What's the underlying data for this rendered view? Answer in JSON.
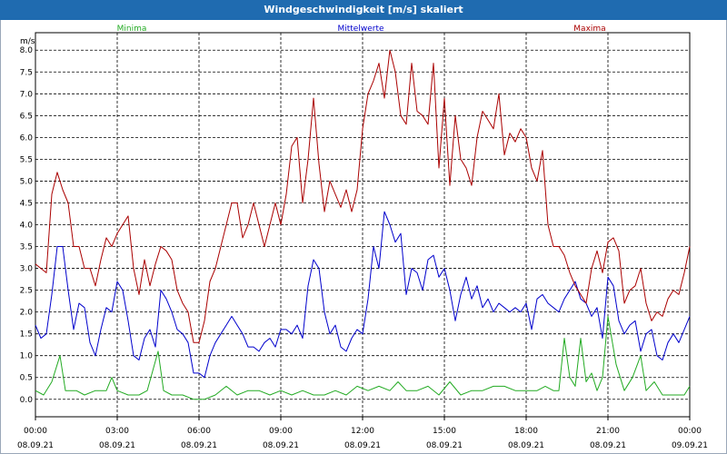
{
  "window": {
    "title": "Windgeschwindigkeit [m/s] skaliert"
  },
  "chart_data": {
    "type": "line",
    "title": "Windgeschwindigkeit [m/s] skaliert",
    "ylabel": "m/s",
    "xlabel": "",
    "ylim": [
      -0.4,
      8.4
    ],
    "grid": true,
    "legend": "top",
    "y_ticks": [
      "0.0",
      "0.5",
      "1.0",
      "1.5",
      "2.0",
      "2.5",
      "3.0",
      "3.5",
      "4.0",
      "4.5",
      "5.0",
      "5.5",
      "6.0",
      "6.5",
      "7.0",
      "7.5",
      "8.0"
    ],
    "x_ticks": [
      {
        "time": "00:00",
        "date": "08.09.21"
      },
      {
        "time": "03:00",
        "date": "08.09.21"
      },
      {
        "time": "06:00",
        "date": "08.09.21"
      },
      {
        "time": "09:00",
        "date": "08.09.21"
      },
      {
        "time": "12:00",
        "date": "08.09.21"
      },
      {
        "time": "15:00",
        "date": "08.09.21"
      },
      {
        "time": "18:00",
        "date": "08.09.21"
      },
      {
        "time": "21:00",
        "date": "08.09.21"
      },
      {
        "time": "00:00",
        "date": "09.09.21"
      }
    ],
    "series": [
      {
        "name": "Minima",
        "color": "#22aa22",
        "points": [
          [
            0.0,
            0.2
          ],
          [
            0.3,
            0.1
          ],
          [
            0.6,
            0.4
          ],
          [
            0.9,
            1.0
          ],
          [
            1.1,
            0.2
          ],
          [
            1.5,
            0.2
          ],
          [
            1.8,
            0.1
          ],
          [
            2.2,
            0.2
          ],
          [
            2.6,
            0.2
          ],
          [
            2.8,
            0.5
          ],
          [
            3.0,
            0.2
          ],
          [
            3.4,
            0.1
          ],
          [
            3.8,
            0.1
          ],
          [
            4.1,
            0.2
          ],
          [
            4.5,
            1.1
          ],
          [
            4.7,
            0.2
          ],
          [
            5.0,
            0.1
          ],
          [
            5.4,
            0.1
          ],
          [
            5.8,
            0.0
          ],
          [
            6.2,
            0.0
          ],
          [
            6.6,
            0.1
          ],
          [
            7.0,
            0.3
          ],
          [
            7.4,
            0.1
          ],
          [
            7.8,
            0.2
          ],
          [
            8.2,
            0.2
          ],
          [
            8.6,
            0.1
          ],
          [
            9.0,
            0.2
          ],
          [
            9.4,
            0.1
          ],
          [
            9.8,
            0.2
          ],
          [
            10.2,
            0.1
          ],
          [
            10.6,
            0.1
          ],
          [
            11.0,
            0.2
          ],
          [
            11.4,
            0.1
          ],
          [
            11.8,
            0.3
          ],
          [
            12.2,
            0.2
          ],
          [
            12.6,
            0.3
          ],
          [
            13.0,
            0.2
          ],
          [
            13.3,
            0.4
          ],
          [
            13.6,
            0.2
          ],
          [
            14.0,
            0.2
          ],
          [
            14.4,
            0.3
          ],
          [
            14.8,
            0.1
          ],
          [
            15.2,
            0.4
          ],
          [
            15.6,
            0.1
          ],
          [
            16.0,
            0.2
          ],
          [
            16.4,
            0.2
          ],
          [
            16.8,
            0.3
          ],
          [
            17.2,
            0.3
          ],
          [
            17.6,
            0.2
          ],
          [
            18.0,
            0.2
          ],
          [
            18.4,
            0.2
          ],
          [
            18.7,
            0.3
          ],
          [
            19.0,
            0.2
          ],
          [
            19.2,
            0.2
          ],
          [
            19.4,
            1.4
          ],
          [
            19.6,
            0.5
          ],
          [
            19.8,
            0.3
          ],
          [
            20.0,
            1.4
          ],
          [
            20.2,
            0.4
          ],
          [
            20.4,
            0.6
          ],
          [
            20.6,
            0.2
          ],
          [
            20.8,
            0.5
          ],
          [
            21.0,
            1.9
          ],
          [
            21.3,
            0.8
          ],
          [
            21.6,
            0.2
          ],
          [
            21.9,
            0.5
          ],
          [
            22.2,
            1.0
          ],
          [
            22.4,
            0.2
          ],
          [
            22.7,
            0.4
          ],
          [
            23.0,
            0.1
          ],
          [
            23.4,
            0.1
          ],
          [
            23.8,
            0.1
          ],
          [
            24.0,
            0.3
          ]
        ]
      },
      {
        "name": "Mittelwerte",
        "color": "#0000cc",
        "points": [
          [
            0.0,
            1.7
          ],
          [
            0.2,
            1.4
          ],
          [
            0.4,
            1.5
          ],
          [
            0.6,
            2.4
          ],
          [
            0.8,
            3.5
          ],
          [
            1.0,
            3.5
          ],
          [
            1.2,
            2.5
          ],
          [
            1.4,
            1.6
          ],
          [
            1.6,
            2.2
          ],
          [
            1.8,
            2.1
          ],
          [
            2.0,
            1.3
          ],
          [
            2.2,
            1.0
          ],
          [
            2.4,
            1.6
          ],
          [
            2.6,
            2.1
          ],
          [
            2.8,
            2.0
          ],
          [
            3.0,
            2.7
          ],
          [
            3.2,
            2.5
          ],
          [
            3.4,
            1.8
          ],
          [
            3.6,
            1.0
          ],
          [
            3.8,
            0.9
          ],
          [
            4.0,
            1.4
          ],
          [
            4.2,
            1.6
          ],
          [
            4.4,
            1.2
          ],
          [
            4.6,
            2.5
          ],
          [
            4.8,
            2.3
          ],
          [
            5.0,
            2.0
          ],
          [
            5.2,
            1.6
          ],
          [
            5.4,
            1.5
          ],
          [
            5.6,
            1.3
          ],
          [
            5.8,
            0.6
          ],
          [
            6.0,
            0.6
          ],
          [
            6.2,
            0.5
          ],
          [
            6.4,
            1.0
          ],
          [
            6.6,
            1.3
          ],
          [
            6.8,
            1.5
          ],
          [
            7.0,
            1.7
          ],
          [
            7.2,
            1.9
          ],
          [
            7.4,
            1.7
          ],
          [
            7.6,
            1.5
          ],
          [
            7.8,
            1.2
          ],
          [
            8.0,
            1.2
          ],
          [
            8.2,
            1.1
          ],
          [
            8.4,
            1.3
          ],
          [
            8.6,
            1.4
          ],
          [
            8.8,
            1.2
          ],
          [
            9.0,
            1.6
          ],
          [
            9.2,
            1.6
          ],
          [
            9.4,
            1.5
          ],
          [
            9.6,
            1.7
          ],
          [
            9.8,
            1.4
          ],
          [
            10.0,
            2.6
          ],
          [
            10.2,
            3.2
          ],
          [
            10.4,
            3.0
          ],
          [
            10.6,
            2.0
          ],
          [
            10.8,
            1.5
          ],
          [
            11.0,
            1.7
          ],
          [
            11.2,
            1.2
          ],
          [
            11.4,
            1.1
          ],
          [
            11.6,
            1.4
          ],
          [
            11.8,
            1.6
          ],
          [
            12.0,
            1.5
          ],
          [
            12.2,
            2.3
          ],
          [
            12.4,
            3.5
          ],
          [
            12.6,
            3.0
          ],
          [
            12.8,
            4.3
          ],
          [
            13.0,
            4.0
          ],
          [
            13.2,
            3.6
          ],
          [
            13.4,
            3.8
          ],
          [
            13.6,
            2.4
          ],
          [
            13.8,
            3.0
          ],
          [
            14.0,
            2.9
          ],
          [
            14.2,
            2.5
          ],
          [
            14.4,
            3.2
          ],
          [
            14.6,
            3.3
          ],
          [
            14.8,
            2.8
          ],
          [
            15.0,
            3.0
          ],
          [
            15.2,
            2.5
          ],
          [
            15.4,
            1.8
          ],
          [
            15.6,
            2.4
          ],
          [
            15.8,
            2.8
          ],
          [
            16.0,
            2.3
          ],
          [
            16.2,
            2.6
          ],
          [
            16.4,
            2.1
          ],
          [
            16.6,
            2.3
          ],
          [
            16.8,
            2.0
          ],
          [
            17.0,
            2.2
          ],
          [
            17.2,
            2.1
          ],
          [
            17.4,
            2.0
          ],
          [
            17.6,
            2.1
          ],
          [
            17.8,
            2.0
          ],
          [
            18.0,
            2.2
          ],
          [
            18.2,
            1.6
          ],
          [
            18.4,
            2.3
          ],
          [
            18.6,
            2.4
          ],
          [
            18.8,
            2.2
          ],
          [
            19.0,
            2.1
          ],
          [
            19.2,
            2.0
          ],
          [
            19.4,
            2.3
          ],
          [
            19.6,
            2.5
          ],
          [
            19.8,
            2.7
          ],
          [
            20.0,
            2.3
          ],
          [
            20.2,
            2.2
          ],
          [
            20.4,
            1.9
          ],
          [
            20.6,
            2.1
          ],
          [
            20.8,
            1.4
          ],
          [
            21.0,
            2.8
          ],
          [
            21.2,
            2.6
          ],
          [
            21.4,
            1.8
          ],
          [
            21.6,
            1.5
          ],
          [
            21.8,
            1.7
          ],
          [
            22.0,
            1.8
          ],
          [
            22.2,
            1.1
          ],
          [
            22.4,
            1.5
          ],
          [
            22.6,
            1.6
          ],
          [
            22.8,
            1.0
          ],
          [
            23.0,
            0.9
          ],
          [
            23.2,
            1.3
          ],
          [
            23.4,
            1.5
          ],
          [
            23.6,
            1.3
          ],
          [
            23.8,
            1.6
          ],
          [
            24.0,
            1.9
          ]
        ]
      },
      {
        "name": "Maxima",
        "color": "#aa0000",
        "points": [
          [
            0.0,
            3.1
          ],
          [
            0.2,
            3.0
          ],
          [
            0.4,
            2.9
          ],
          [
            0.6,
            4.7
          ],
          [
            0.8,
            5.2
          ],
          [
            1.0,
            4.8
          ],
          [
            1.2,
            4.5
          ],
          [
            1.4,
            3.5
          ],
          [
            1.6,
            3.5
          ],
          [
            1.8,
            3.0
          ],
          [
            2.0,
            3.0
          ],
          [
            2.2,
            2.6
          ],
          [
            2.4,
            3.2
          ],
          [
            2.6,
            3.7
          ],
          [
            2.8,
            3.5
          ],
          [
            3.0,
            3.8
          ],
          [
            3.2,
            4.0
          ],
          [
            3.4,
            4.2
          ],
          [
            3.6,
            3.0
          ],
          [
            3.8,
            2.4
          ],
          [
            4.0,
            3.2
          ],
          [
            4.2,
            2.6
          ],
          [
            4.4,
            3.1
          ],
          [
            4.6,
            3.5
          ],
          [
            4.8,
            3.4
          ],
          [
            5.0,
            3.2
          ],
          [
            5.2,
            2.5
          ],
          [
            5.4,
            2.2
          ],
          [
            5.6,
            2.0
          ],
          [
            5.8,
            1.3
          ],
          [
            6.0,
            1.3
          ],
          [
            6.2,
            1.8
          ],
          [
            6.4,
            2.7
          ],
          [
            6.6,
            3.0
          ],
          [
            6.8,
            3.5
          ],
          [
            7.0,
            4.0
          ],
          [
            7.2,
            4.5
          ],
          [
            7.4,
            4.5
          ],
          [
            7.6,
            3.7
          ],
          [
            7.8,
            4.0
          ],
          [
            8.0,
            4.5
          ],
          [
            8.2,
            4.0
          ],
          [
            8.4,
            3.5
          ],
          [
            8.6,
            4.0
          ],
          [
            8.8,
            4.5
          ],
          [
            9.0,
            4.0
          ],
          [
            9.2,
            4.7
          ],
          [
            9.4,
            5.8
          ],
          [
            9.6,
            6.0
          ],
          [
            9.8,
            4.5
          ],
          [
            10.0,
            5.5
          ],
          [
            10.2,
            6.9
          ],
          [
            10.4,
            5.4
          ],
          [
            10.6,
            4.3
          ],
          [
            10.8,
            5.0
          ],
          [
            11.0,
            4.7
          ],
          [
            11.2,
            4.4
          ],
          [
            11.4,
            4.8
          ],
          [
            11.6,
            4.3
          ],
          [
            11.8,
            4.8
          ],
          [
            12.0,
            6.2
          ],
          [
            12.2,
            7.0
          ],
          [
            12.4,
            7.3
          ],
          [
            12.6,
            7.7
          ],
          [
            12.8,
            6.9
          ],
          [
            13.0,
            8.0
          ],
          [
            13.2,
            7.5
          ],
          [
            13.4,
            6.5
          ],
          [
            13.6,
            6.3
          ],
          [
            13.8,
            7.7
          ],
          [
            14.0,
            6.6
          ],
          [
            14.2,
            6.5
          ],
          [
            14.4,
            6.3
          ],
          [
            14.6,
            7.7
          ],
          [
            14.8,
            5.3
          ],
          [
            15.0,
            6.9
          ],
          [
            15.2,
            4.9
          ],
          [
            15.4,
            6.5
          ],
          [
            15.6,
            5.5
          ],
          [
            15.8,
            5.3
          ],
          [
            16.0,
            4.9
          ],
          [
            16.2,
            6.0
          ],
          [
            16.4,
            6.6
          ],
          [
            16.6,
            6.4
          ],
          [
            16.8,
            6.2
          ],
          [
            17.0,
            7.0
          ],
          [
            17.2,
            5.6
          ],
          [
            17.4,
            6.1
          ],
          [
            17.6,
            5.9
          ],
          [
            17.8,
            6.2
          ],
          [
            18.0,
            6.0
          ],
          [
            18.2,
            5.3
          ],
          [
            18.4,
            5.0
          ],
          [
            18.6,
            5.7
          ],
          [
            18.8,
            4.0
          ],
          [
            19.0,
            3.5
          ],
          [
            19.2,
            3.5
          ],
          [
            19.4,
            3.3
          ],
          [
            19.6,
            2.9
          ],
          [
            19.8,
            2.6
          ],
          [
            20.0,
            2.4
          ],
          [
            20.2,
            2.2
          ],
          [
            20.4,
            3.0
          ],
          [
            20.6,
            3.4
          ],
          [
            20.8,
            2.9
          ],
          [
            21.0,
            3.6
          ],
          [
            21.2,
            3.7
          ],
          [
            21.4,
            3.4
          ],
          [
            21.6,
            2.2
          ],
          [
            21.8,
            2.5
          ],
          [
            22.0,
            2.6
          ],
          [
            22.2,
            3.0
          ],
          [
            22.4,
            2.2
          ],
          [
            22.6,
            1.8
          ],
          [
            22.8,
            2.0
          ],
          [
            23.0,
            1.9
          ],
          [
            23.2,
            2.3
          ],
          [
            23.4,
            2.5
          ],
          [
            23.6,
            2.4
          ],
          [
            23.8,
            2.9
          ],
          [
            24.0,
            3.5
          ]
        ]
      }
    ]
  }
}
